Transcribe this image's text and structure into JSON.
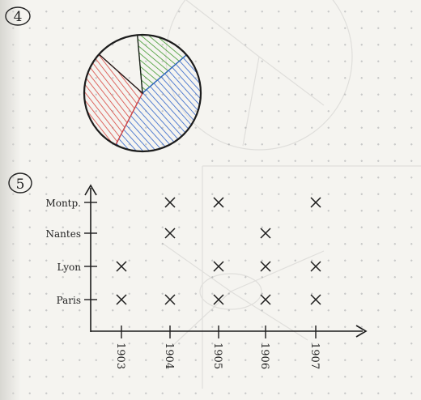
{
  "section_numbers": {
    "pie": "4",
    "scatter": "5"
  },
  "colors": {
    "ink": "#1c1c1c",
    "red": "#d8443e",
    "green": "#3f9a2e",
    "blue": "#2f63c9"
  },
  "chart_data": [
    {
      "type": "pie",
      "slices": [
        {
          "color": "#3f9a2e",
          "fraction": 0.15
        },
        {
          "color": "#2f63c9",
          "fraction": 0.44
        },
        {
          "color": "#d8443e",
          "fraction": 0.29
        },
        {
          "color": "#1c1c1c",
          "fraction": 0.12
        }
      ]
    },
    {
      "type": "scatter",
      "categories_x": [
        "1903",
        "1904",
        "1905",
        "1906",
        "1907"
      ],
      "categories_y": [
        "Paris",
        "Lyon",
        "Nantes",
        "Montp."
      ],
      "points": [
        {
          "x": "1903",
          "y": "Paris"
        },
        {
          "x": "1904",
          "y": "Paris"
        },
        {
          "x": "1905",
          "y": "Paris"
        },
        {
          "x": "1906",
          "y": "Paris"
        },
        {
          "x": "1907",
          "y": "Paris"
        },
        {
          "x": "1903",
          "y": "Lyon"
        },
        {
          "x": "1905",
          "y": "Lyon"
        },
        {
          "x": "1906",
          "y": "Lyon"
        },
        {
          "x": "1907",
          "y": "Lyon"
        },
        {
          "x": "1904",
          "y": "Nantes"
        },
        {
          "x": "1906",
          "y": "Nantes"
        },
        {
          "x": "1904",
          "y": "Montp."
        },
        {
          "x": "1905",
          "y": "Montp."
        },
        {
          "x": "1907",
          "y": "Montp."
        }
      ]
    }
  ]
}
